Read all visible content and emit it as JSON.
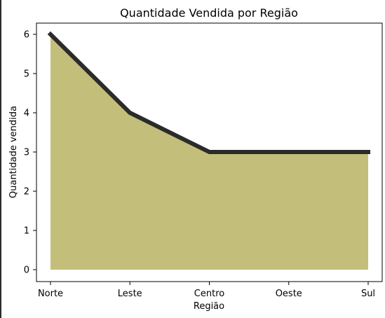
{
  "chart_data": {
    "type": "area",
    "title": "Quantidade Vendida por Região",
    "xlabel": "Região",
    "ylabel": "Quantidade vendida",
    "categories": [
      "Norte",
      "Leste",
      "Centro",
      "Oeste",
      "Sul"
    ],
    "values": [
      6,
      4,
      3,
      3,
      3
    ],
    "ylim": [
      0,
      6
    ],
    "yticks": [
      "0",
      "1",
      "2",
      "3",
      "4",
      "5",
      "6"
    ],
    "grid": false,
    "colors": {
      "fill": "#c3bf7a",
      "line": "#2b2b2b"
    }
  }
}
